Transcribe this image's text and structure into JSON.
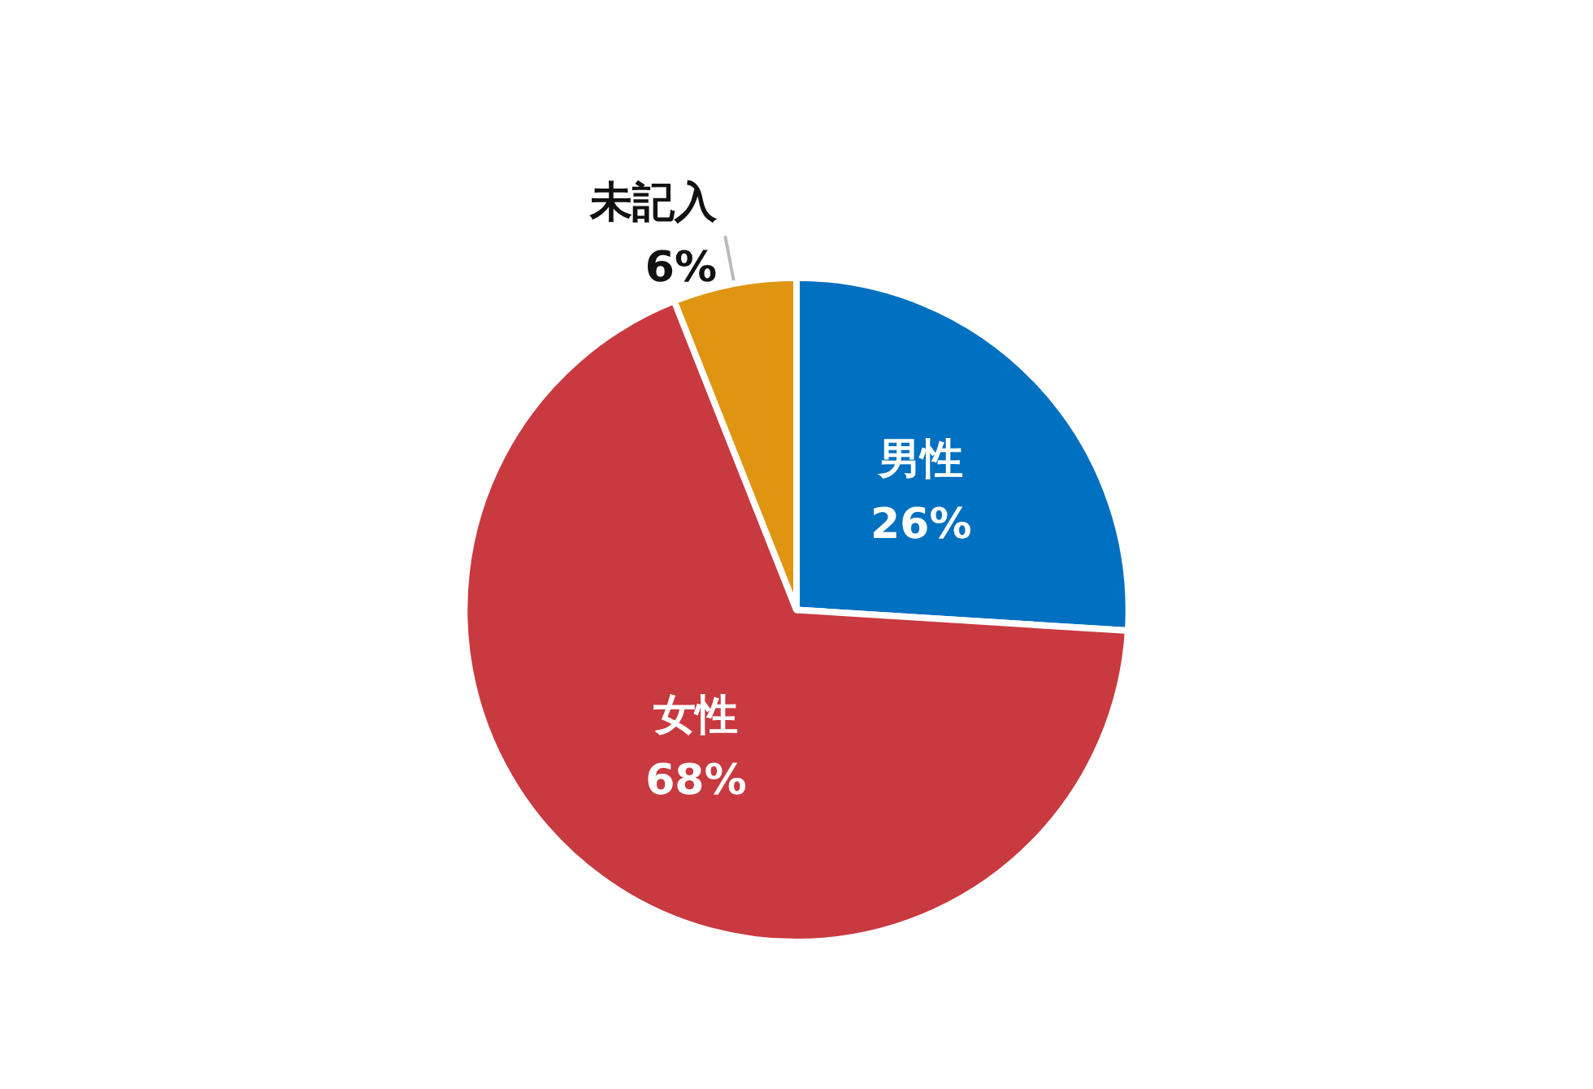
{
  "chart_data": {
    "type": "pie",
    "categories": [
      "男性",
      "女性",
      "未記入"
    ],
    "values": [
      26,
      68,
      6
    ],
    "value_labels": [
      "26%",
      "68%",
      "6%"
    ],
    "colors": [
      "#0070c0",
      "#c83a40",
      "#e09512"
    ],
    "legend": false
  }
}
